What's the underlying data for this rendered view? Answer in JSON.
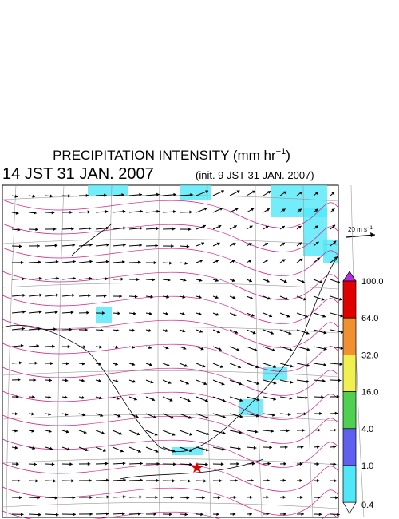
{
  "header": {
    "title": "PRECIPITATION INTENSITY (mm hr",
    "title_exponent": "−1",
    "title_end": ")",
    "time": "14 JST 31 JAN. 2007",
    "init": "(init. 9 JST 31 JAN. 2007)"
  },
  "wind_scale": {
    "label": "20 m s",
    "exponent": "−1"
  },
  "colorbar": {
    "labels": [
      "100.0",
      "64.0",
      "32.0",
      "16.0",
      "4.0",
      "1.0",
      "0.4"
    ],
    "colors": [
      "#b030e0",
      "#e00000",
      "#f09030",
      "#f0f050",
      "#50d050",
      "#6060f0",
      "#50e8f8",
      "#ffffff"
    ]
  }
}
